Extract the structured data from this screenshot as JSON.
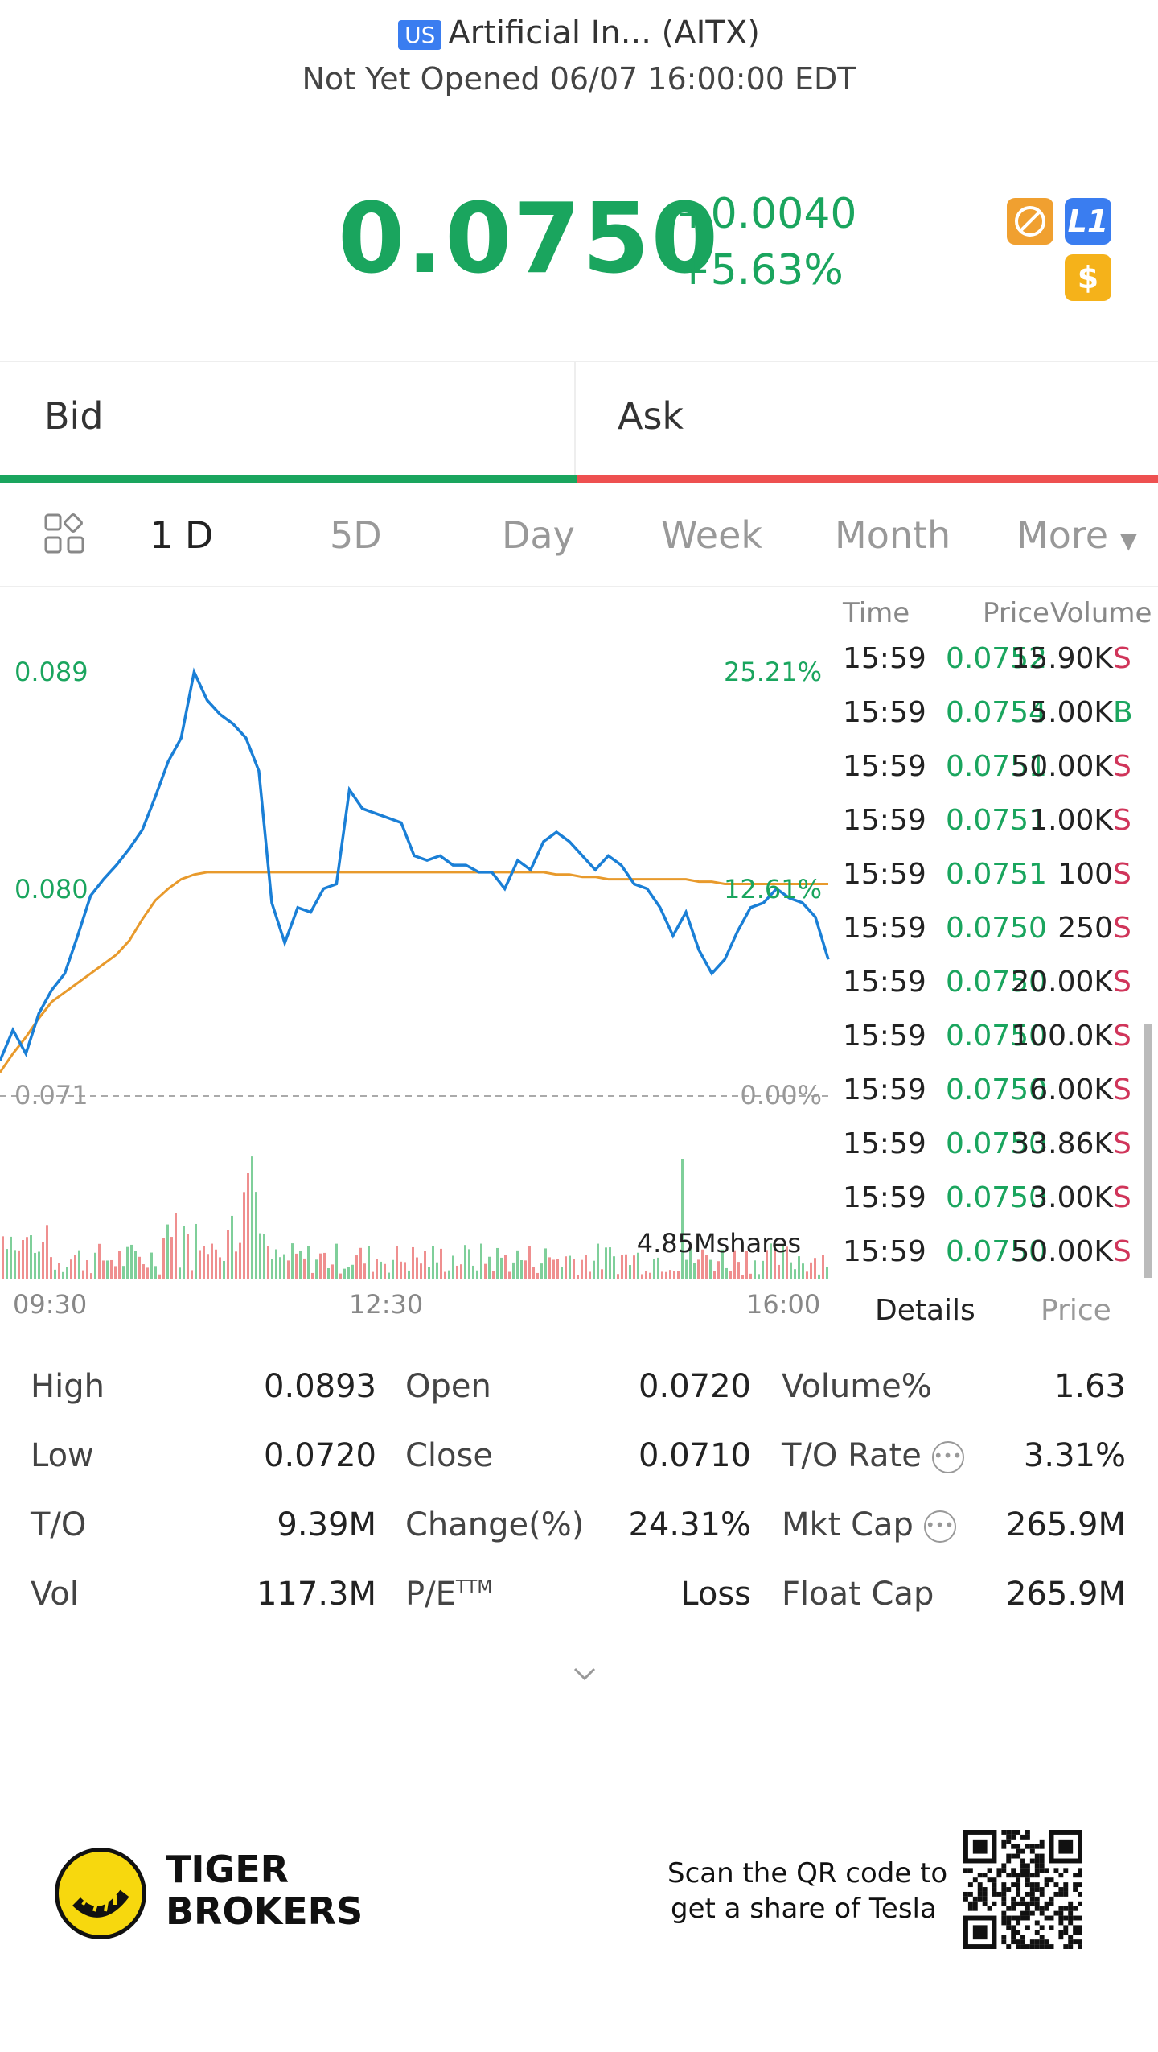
{
  "header": {
    "market_badge": "US",
    "title": "Artificial In... (AITX)",
    "status": "Not Yet Opened 06/07 16:00:00 EDT"
  },
  "quote": {
    "price": "0.0750",
    "change": "+0.0040",
    "change_pct": "+5.63%",
    "badges": [
      {
        "icon": "no-shortsell-icon",
        "color": "#f0a030"
      },
      {
        "icon": "level1-icon",
        "label": "L1",
        "color": "#3a7df0"
      },
      {
        "icon": "dollar-icon",
        "label": "$",
        "color": "#f5b21a"
      }
    ]
  },
  "bidask": {
    "bid_label": "Bid",
    "ask_label": "Ask"
  },
  "period_tabs": {
    "items": [
      "1 D",
      "5D",
      "Day",
      "Week",
      "Month",
      "More"
    ],
    "active": "1 D"
  },
  "chart_data": {
    "type": "line",
    "y_labels_left": [
      "0.089",
      "0.080",
      "0.071"
    ],
    "y_labels_right": [
      "25.21%",
      "12.61%",
      "0.00%"
    ],
    "x_labels": [
      "09:30",
      "12:30",
      "16:00"
    ],
    "volume_label": "4.85Mshares",
    "reference_price": 0.071,
    "ylim": [
      0.071,
      0.089
    ],
    "series": [
      {
        "color": "#1a7fd6",
        "values": [
          0.0725,
          0.0738,
          0.0728,
          0.0745,
          0.0755,
          0.0762,
          0.0778,
          0.0795,
          0.0802,
          0.0808,
          0.0815,
          0.0823,
          0.0837,
          0.0852,
          0.0862,
          0.089,
          0.0878,
          0.0872,
          0.0868,
          0.0862,
          0.0848,
          0.0792,
          0.0775,
          0.079,
          0.0788,
          0.0798,
          0.08,
          0.084,
          0.0832,
          0.083,
          0.0828,
          0.0826,
          0.0812,
          0.081,
          0.0812,
          0.0808,
          0.0808,
          0.0805,
          0.0805,
          0.0798,
          0.081,
          0.0806,
          0.0818,
          0.0822,
          0.0818,
          0.0812,
          0.0806,
          0.0812,
          0.0808,
          0.08,
          0.0798,
          0.079,
          0.0778,
          0.0788,
          0.0772,
          0.0762,
          0.0768,
          0.078,
          0.079,
          0.0792,
          0.0798,
          0.0794,
          0.0792,
          0.0786,
          0.0768
        ]
      },
      {
        "color": "#e89a2c",
        "values": [
          0.072,
          0.0728,
          0.0735,
          0.0743,
          0.075,
          0.0754,
          0.0758,
          0.0762,
          0.0766,
          0.077,
          0.0776,
          0.0785,
          0.0793,
          0.0798,
          0.0802,
          0.0804,
          0.0805,
          0.0805,
          0.0805,
          0.0805,
          0.0805,
          0.0805,
          0.0805,
          0.0805,
          0.0805,
          0.0805,
          0.0805,
          0.0805,
          0.0805,
          0.0805,
          0.0805,
          0.0805,
          0.0805,
          0.0805,
          0.0805,
          0.0805,
          0.0805,
          0.0805,
          0.0805,
          0.0805,
          0.0805,
          0.0805,
          0.0805,
          0.0804,
          0.0804,
          0.0803,
          0.0803,
          0.0802,
          0.0802,
          0.0802,
          0.0802,
          0.0802,
          0.0802,
          0.0802,
          0.0801,
          0.0801,
          0.08,
          0.08,
          0.08,
          0.08,
          0.08,
          0.08,
          0.08,
          0.08,
          0.08
        ]
      }
    ]
  },
  "trades": {
    "headers": {
      "time": "Time",
      "price": "Price",
      "volume": "Volume"
    },
    "rows": [
      {
        "time": "15:59",
        "price": "0.0752",
        "volume": "15.90K",
        "side": "S"
      },
      {
        "time": "15:59",
        "price": "0.0754",
        "volume": "5.00K",
        "side": "B"
      },
      {
        "time": "15:59",
        "price": "0.0751",
        "volume": "50.00K",
        "side": "S"
      },
      {
        "time": "15:59",
        "price": "0.0751",
        "volume": "1.00K",
        "side": "S"
      },
      {
        "time": "15:59",
        "price": "0.0751",
        "volume": "100",
        "side": "S"
      },
      {
        "time": "15:59",
        "price": "0.0750",
        "volume": "250",
        "side": "S"
      },
      {
        "time": "15:59",
        "price": "0.0750",
        "volume": "20.00K",
        "side": "S"
      },
      {
        "time": "15:59",
        "price": "0.0750",
        "volume": "100.0K",
        "side": "S"
      },
      {
        "time": "15:59",
        "price": "0.0750",
        "volume": "6.00K",
        "side": "S"
      },
      {
        "time": "15:59",
        "price": "0.0750",
        "volume": "33.86K",
        "side": "S"
      },
      {
        "time": "15:59",
        "price": "0.0750",
        "volume": "3.00K",
        "side": "S"
      },
      {
        "time": "15:59",
        "price": "0.0750",
        "volume": "50.00K",
        "side": "S"
      }
    ],
    "tabs": {
      "details": "Details",
      "price": "Price"
    }
  },
  "stats": {
    "col1": [
      {
        "label": "High",
        "value": "0.0893"
      },
      {
        "label": "Low",
        "value": "0.0720"
      },
      {
        "label": "T/O",
        "value": "9.39M"
      },
      {
        "label": "Vol",
        "value": "117.3M"
      }
    ],
    "col2": [
      {
        "label": "Open",
        "value": "0.0720"
      },
      {
        "label": "Close",
        "value": "0.0710"
      },
      {
        "label": "Change(%)",
        "value": "24.31%"
      },
      {
        "label": "P/E",
        "sup": "TTM",
        "value": "Loss"
      }
    ],
    "col3": [
      {
        "label": "Volume%",
        "value": "1.63"
      },
      {
        "label": "T/O Rate",
        "value": "3.31%"
      },
      {
        "label": "Mkt Cap",
        "value": "265.9M"
      },
      {
        "label": "Float Cap",
        "value": "265.9M"
      }
    ]
  },
  "footer": {
    "brand_line1": "TIGER",
    "brand_line2": "BROKERS",
    "qr_line1": "Scan the QR code to",
    "qr_line2": "get a share of Tesla"
  },
  "colors": {
    "up": "#1aa55e",
    "down": "#ee5050",
    "line": "#1a7fd6",
    "avg": "#e89a2c",
    "sell": "#d0355a",
    "buy": "#1aa55e"
  }
}
